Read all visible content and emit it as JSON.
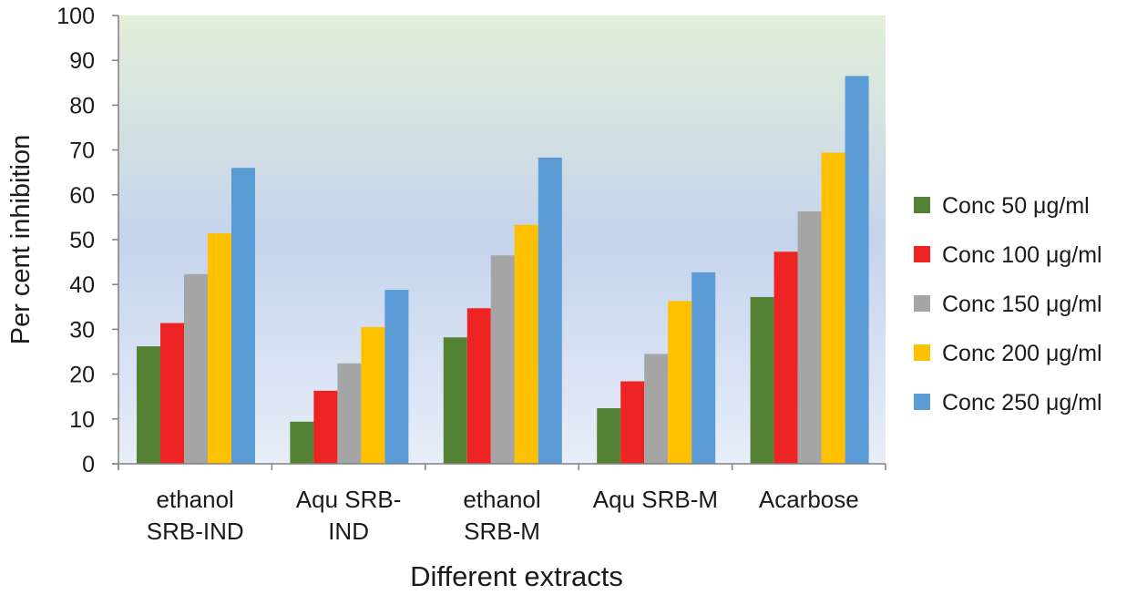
{
  "chart_data": {
    "type": "bar",
    "title": "",
    "xlabel": "Different extracts",
    "ylabel": "Per cent inhibition",
    "ylim": [
      0,
      100
    ],
    "yticks": [
      0,
      10,
      20,
      30,
      40,
      50,
      60,
      70,
      80,
      90,
      100
    ],
    "categories": [
      [
        "ethanol",
        "SRB-IND"
      ],
      [
        "Aqu SRB-",
        "IND"
      ],
      [
        "ethanol",
        "SRB-M"
      ],
      [
        "Aqu SRB-M"
      ],
      [
        "Acarbose"
      ]
    ],
    "series": [
      {
        "name": "Conc 50 μg/ml",
        "color": "#548235",
        "values": [
          26.2,
          9.4,
          28.2,
          12.4,
          37.2
        ]
      },
      {
        "name": "Conc 100 μg/ml",
        "color": "#ee2424",
        "values": [
          31.4,
          16.3,
          34.7,
          18.4,
          47.3
        ]
      },
      {
        "name": "Conc 150 μg/ml",
        "color": "#a5a5a5",
        "values": [
          42.3,
          22.4,
          46.5,
          24.5,
          56.3
        ]
      },
      {
        "name": "Conc 200 μg/ml",
        "color": "#ffc000",
        "values": [
          51.4,
          30.5,
          53.3,
          36.3,
          69.4
        ]
      },
      {
        "name": "Conc 250 μg/ml",
        "color": "#5b9bd5",
        "values": [
          66.0,
          38.8,
          68.3,
          42.7,
          86.5
        ]
      }
    ],
    "legend_position": "right",
    "background_gradient": [
      "#e2efd9",
      "#c5d3ec",
      "#e7eef8"
    ]
  }
}
